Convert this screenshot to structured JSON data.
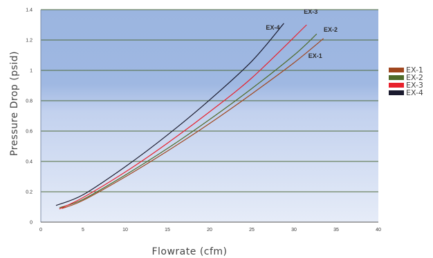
{
  "chart_data": {
    "type": "line",
    "title": "",
    "xlabel": "Flowrate (cfm)",
    "ylabel": "Pressure Drop (psid)",
    "xlim": [
      0,
      40
    ],
    "ylim": [
      0,
      1.4
    ],
    "x_ticks": [
      0,
      5,
      10,
      15,
      20,
      25,
      30,
      35,
      40
    ],
    "y_ticks": [
      0,
      0.2,
      0.4,
      0.6,
      0.8,
      1.0,
      1.2,
      1.4
    ],
    "x_tick_labels": [
      "0",
      "5",
      "10",
      "15",
      "20",
      "25",
      "30",
      "35",
      "40"
    ],
    "y_tick_labels": [
      "0",
      "0.2",
      "0.4",
      "0.6",
      "0.8",
      "1",
      "1.2",
      "1.4"
    ],
    "grid": "horizontal",
    "legend_position": "right",
    "series": [
      {
        "name": "EX-1",
        "label": "EX-1",
        "color": "#a0461e",
        "x": [
          2.5,
          5,
          10,
          15,
          20,
          25,
          30,
          33.5
        ],
        "y": [
          0.09,
          0.143,
          0.298,
          0.468,
          0.65,
          0.845,
          1.05,
          1.21
        ]
      },
      {
        "name": "EX-2",
        "label": "EX-2",
        "color": "#4f6b2a",
        "x": [
          2.2,
          5,
          10,
          15,
          20,
          25,
          30,
          32.7
        ],
        "y": [
          0.095,
          0.15,
          0.31,
          0.485,
          0.676,
          0.88,
          1.1,
          1.24
        ]
      },
      {
        "name": "EX-3",
        "label": "EX-3",
        "color": "#e8212c",
        "x": [
          2.2,
          5,
          10,
          15,
          20,
          25,
          31.5
        ],
        "y": [
          0.087,
          0.162,
          0.33,
          0.52,
          0.727,
          0.95,
          1.3
        ]
      },
      {
        "name": "EX-4",
        "label": "EX-4",
        "color": "#1a1a2e",
        "x": [
          1.8,
          5,
          10,
          15,
          20,
          25,
          28.8
        ],
        "y": [
          0.11,
          0.18,
          0.365,
          0.574,
          0.805,
          1.06,
          1.31
        ]
      }
    ]
  }
}
